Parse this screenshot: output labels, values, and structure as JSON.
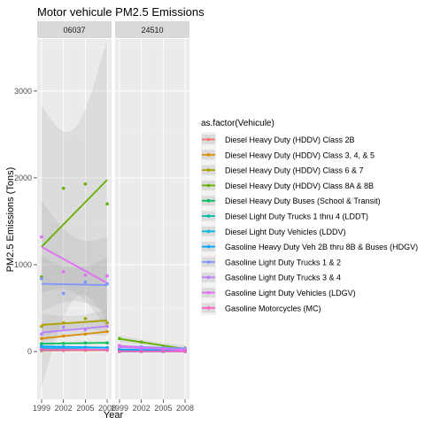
{
  "chart_data": {
    "type": "scatter",
    "title": "Motor vehicule PM2.5 Emissions",
    "xlabel": "Year",
    "ylabel": "PM2.5 Emissions (Tons)",
    "x_ticks": [
      1999,
      2002,
      2005,
      2008
    ],
    "y_ticks": [
      0,
      1000,
      2000,
      3000
    ],
    "xlim": [
      1998.4,
      2008.6
    ],
    "ylim": [
      -550,
      3600
    ],
    "facets": [
      "06037",
      "24510"
    ],
    "legend_title": "as.factor(Vehicule)",
    "legend_position": "right",
    "smooth": "lm with confidence band",
    "series": [
      {
        "name": "Diesel  Heavy Duty (HDDV) Class 2B",
        "color": "#F8766D",
        "points": {
          "06037": [
            [
              1999,
              10
            ],
            [
              2002,
              12
            ],
            [
              2005,
              15
            ],
            [
              2008,
              14
            ]
          ],
          "24510": [
            [
              1999,
              1
            ],
            [
              2002,
              1
            ],
            [
              2005,
              1
            ],
            [
              2008,
              1
            ]
          ]
        }
      },
      {
        "name": "Diesel  Heavy Duty (HDDV) Class 3, 4, & 5",
        "color": "#DB8E00",
        "points": {
          "06037": [
            [
              1999,
              150
            ],
            [
              2002,
              180
            ],
            [
              2005,
              200
            ],
            [
              2008,
              230
            ]
          ],
          "24510": [
            [
              1999,
              8
            ],
            [
              2002,
              6
            ],
            [
              2005,
              5
            ],
            [
              2008,
              3
            ]
          ]
        }
      },
      {
        "name": "Diesel  Heavy Duty (HDDV) Class 6 & 7",
        "color": "#AEA200",
        "points": {
          "06037": [
            [
              1999,
              290
            ],
            [
              2002,
              330
            ],
            [
              2005,
              380
            ],
            [
              2008,
              330
            ]
          ],
          "24510": [
            [
              1999,
              20
            ],
            [
              2002,
              15
            ],
            [
              2005,
              12
            ],
            [
              2008,
              8
            ]
          ]
        }
      },
      {
        "name": "Diesel  Heavy Duty (HDDV) Class 8A & 8B",
        "color": "#64B200",
        "points": {
          "06037": [
            [
              1999,
              860
            ],
            [
              2002,
              1880
            ],
            [
              2005,
              1930
            ],
            [
              2008,
              1700
            ]
          ],
          "24510": [
            [
              1999,
              150
            ],
            [
              2002,
              110
            ],
            [
              2005,
              55
            ],
            [
              2008,
              40
            ]
          ]
        }
      },
      {
        "name": "Diesel  Heavy Duty Buses (School & Transit)",
        "color": "#00BD5C",
        "points": {
          "06037": [
            [
              1999,
              90
            ],
            [
              2002,
              95
            ],
            [
              2005,
              100
            ],
            [
              2008,
              100
            ]
          ],
          "24510": [
            [
              1999,
              20
            ],
            [
              2002,
              15
            ],
            [
              2005,
              10
            ],
            [
              2008,
              5
            ]
          ]
        }
      },
      {
        "name": "Diesel  Light Duty Trucks 1 thru 4 (LDDT)",
        "color": "#00C1A7",
        "points": {
          "06037": [
            [
              1999,
              20
            ],
            [
              2002,
              22
            ],
            [
              2005,
              25
            ],
            [
              2008,
              20
            ]
          ],
          "24510": [
            [
              1999,
              2
            ],
            [
              2002,
              2
            ],
            [
              2005,
              1
            ],
            [
              2008,
              1
            ]
          ]
        }
      },
      {
        "name": "Diesel  Light Duty Vehicles (LDDV)",
        "color": "#00BADE",
        "points": {
          "06037": [
            [
              1999,
              40
            ],
            [
              2002,
              35
            ],
            [
              2005,
              30
            ],
            [
              2008,
              20
            ]
          ],
          "24510": [
            [
              1999,
              3
            ],
            [
              2002,
              2
            ],
            [
              2005,
              1
            ],
            [
              2008,
              1
            ]
          ]
        }
      },
      {
        "name": "Gasoline  Heavy Duty Veh 2B thru 8B & Buses (HDGV)",
        "color": "#00A6FF",
        "points": {
          "06037": [
            [
              1999,
              60
            ],
            [
              2002,
              55
            ],
            [
              2005,
              50
            ],
            [
              2008,
              45
            ]
          ],
          "24510": [
            [
              1999,
              25
            ],
            [
              2002,
              20
            ],
            [
              2005,
              15
            ],
            [
              2008,
              10
            ]
          ]
        }
      },
      {
        "name": "Gasoline  Light Duty Trucks 1 & 2",
        "color": "#7F96FF",
        "points": {
          "06037": [
            [
              1999,
              840
            ],
            [
              2002,
              670
            ],
            [
              2005,
              800
            ],
            [
              2008,
              780
            ]
          ],
          "24510": [
            [
              1999,
              60
            ],
            [
              2002,
              55
            ],
            [
              2005,
              45
            ],
            [
              2008,
              35
            ]
          ]
        }
      },
      {
        "name": "Gasoline  Light Duty Trucks 3 & 4",
        "color": "#BC81FF",
        "points": {
          "06037": [
            [
              1999,
              200
            ],
            [
              2002,
              280
            ],
            [
              2005,
              250
            ],
            [
              2008,
              290
            ]
          ],
          "24510": [
            [
              1999,
              50
            ],
            [
              2002,
              40
            ],
            [
              2005,
              30
            ],
            [
              2008,
              20
            ]
          ]
        }
      },
      {
        "name": "Gasoline  Light Duty Vehicles (LDGV)",
        "color": "#E26EF7",
        "points": {
          "06037": [
            [
              1999,
              1320
            ],
            [
              2002,
              920
            ],
            [
              2005,
              880
            ],
            [
              2008,
              870
            ]
          ],
          "24510": [
            [
              1999,
              70
            ],
            [
              2002,
              40
            ],
            [
              2005,
              30
            ],
            [
              2008,
              20
            ]
          ]
        }
      },
      {
        "name": "Gasoline  Motorcycles (MC)",
        "color": "#FF62BF",
        "points": {
          "06037": [
            [
              1999,
              25
            ],
            [
              2002,
              22
            ],
            [
              2005,
              25
            ],
            [
              2008,
              20
            ]
          ],
          "24510": [
            [
              1999,
              3
            ],
            [
              2002,
              2
            ],
            [
              2005,
              2
            ],
            [
              2008,
              1
            ]
          ]
        }
      }
    ]
  }
}
